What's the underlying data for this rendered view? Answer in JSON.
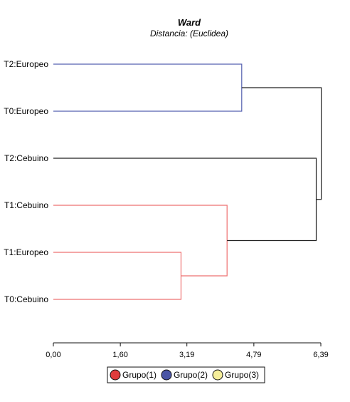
{
  "chart_data": {
    "type": "dendrogram",
    "title": "Ward",
    "subtitle": "Distancia: (Euclidea)",
    "axis": {
      "ticks": [
        0.0,
        1.6,
        3.19,
        4.79,
        6.39
      ],
      "tick_labels": [
        "0,00",
        "1,60",
        "3,19",
        "4,79",
        "6,39"
      ],
      "range": [
        0.0,
        6.39
      ]
    },
    "leaves": [
      {
        "label": "T2:Europeo",
        "group": 2
      },
      {
        "label": "T0:Europeo",
        "group": 2
      },
      {
        "label": "T2:Cebuino",
        "group": 3
      },
      {
        "label": "T1:Cebuino",
        "group": 1
      },
      {
        "label": "T1:Europeo",
        "group": 1
      },
      {
        "label": "T0:Cebuino",
        "group": 1
      }
    ],
    "merges": [
      {
        "a": "T1:Europeo",
        "b": "T0:Cebuino",
        "height": 3.05,
        "group": 1
      },
      {
        "a": "T1:Cebuino",
        "b": "m1",
        "height": 4.15,
        "group": 1
      },
      {
        "a": "T2:Cebuino",
        "b": "m2",
        "height": 6.28,
        "group": 0
      },
      {
        "a": "T2:Europeo",
        "b": "T0:Europeo",
        "height": 4.5,
        "group": 2
      },
      {
        "a": "m4",
        "b": "m3",
        "height": 6.4,
        "group": 0
      }
    ],
    "groups": [
      {
        "id": 1,
        "label": "Grupo(1)",
        "color": "#e03b3b",
        "line_color": "#ee7070"
      },
      {
        "id": 2,
        "label": "Grupo(2)",
        "color": "#4a55a5",
        "line_color": "#5560b0"
      },
      {
        "id": 3,
        "label": "Grupo(3)",
        "color": "#f5ee9a",
        "line_color": "#e8e79a"
      }
    ],
    "neutral_line_color": "#222222",
    "legend_position": "bottom-center"
  }
}
